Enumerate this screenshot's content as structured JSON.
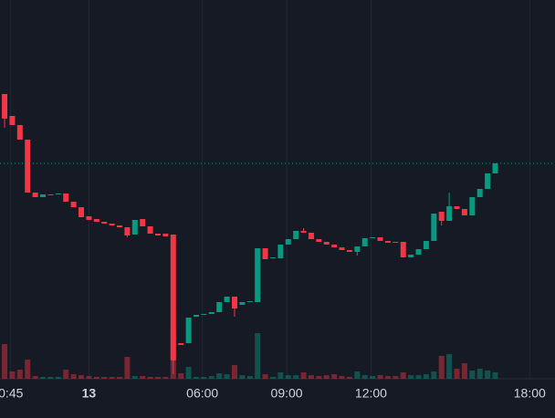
{
  "chart_data": {
    "type": "candlestick",
    "open": [
      317,
      293,
      283,
      267,
      209,
      204,
      206,
      207,
      208,
      199,
      193,
      183,
      180,
      177,
      175,
      173,
      171,
      163,
      180,
      172,
      164,
      164,
      163,
      44,
      44,
      73,
      75,
      76,
      78,
      89,
      95,
      86,
      89,
      89,
      148,
      137,
      137,
      152,
      158,
      167,
      165,
      158,
      155,
      152,
      149,
      146,
      144,
      150,
      159,
      160,
      156,
      155,
      155,
      138,
      141,
      147,
      156,
      188,
      178,
      194,
      191,
      184,
      204,
      213,
      230
    ],
    "high": [
      317,
      293,
      283,
      267,
      209,
      207,
      207,
      208,
      208,
      199,
      193,
      183,
      180,
      177,
      175,
      173,
      171,
      179,
      180,
      172,
      164,
      164,
      163,
      44,
      72,
      75,
      76,
      78,
      89,
      95,
      95,
      89,
      90,
      148,
      148,
      138,
      152,
      158,
      167,
      170,
      165,
      158,
      155,
      152,
      149,
      146,
      150,
      159,
      160,
      160,
      156,
      155,
      155,
      141,
      147,
      156,
      186,
      188,
      209,
      194,
      191,
      204,
      213,
      230,
      241
    ],
    "low": [
      280,
      283,
      267,
      209,
      204,
      204,
      206,
      207,
      199,
      193,
      182,
      179,
      177,
      175,
      173,
      171,
      160,
      163,
      172,
      164,
      162,
      161,
      10,
      42,
      44,
      73,
      75,
      76,
      78,
      89,
      73,
      86,
      89,
      89,
      136,
      137,
      137,
      152,
      158,
      165,
      158,
      155,
      152,
      149,
      146,
      144,
      140,
      150,
      159,
      156,
      154,
      154,
      138,
      138,
      141,
      147,
      156,
      173,
      178,
      191,
      184,
      184,
      204,
      213,
      230
    ],
    "close": [
      290,
      283,
      267,
      209,
      204,
      207,
      207,
      208,
      199,
      193,
      182,
      179,
      177,
      175,
      173,
      171,
      162,
      179,
      172,
      164,
      162,
      161,
      25,
      42,
      72,
      75,
      76,
      78,
      89,
      95,
      82,
      89,
      90,
      148,
      136,
      138,
      152,
      158,
      167,
      165,
      158,
      155,
      152,
      149,
      146,
      144,
      150,
      159,
      160,
      156,
      154,
      154,
      138,
      141,
      147,
      156,
      186,
      178,
      194,
      191,
      184,
      204,
      213,
      230,
      241
    ],
    "volume": [
      38,
      8,
      10,
      21,
      3,
      2,
      2,
      2,
      10,
      5,
      4,
      3,
      2,
      2,
      2,
      2,
      24,
      3,
      3,
      2,
      2,
      2,
      55,
      6,
      13,
      2,
      2,
      3,
      6,
      5,
      15,
      4,
      3,
      50,
      5,
      2,
      7,
      4,
      4,
      7,
      4,
      3,
      4,
      5,
      3,
      2,
      8,
      4,
      3,
      4,
      3,
      3,
      7,
      4,
      4,
      5,
      8,
      25,
      27,
      11,
      17,
      9,
      11,
      9,
      7
    ],
    "up_color": "#089981",
    "down_color": "#f23645",
    "ylim": [
      0,
      420
    ],
    "volume_lim": [
      0,
      100
    ],
    "xlim": [
      -0.6,
      71.8
    ],
    "xticks": [
      {
        "value": 0.8,
        "label": "0:45"
      },
      {
        "value": 11,
        "label": "13"
      },
      {
        "value": 25.8,
        "label": "06:00"
      },
      {
        "value": 36.8,
        "label": "09:00"
      },
      {
        "value": 47.8,
        "label": "12:00"
      },
      {
        "value": 68.5,
        "label": "18:00"
      }
    ],
    "grid": true,
    "last_price_line": true
  }
}
